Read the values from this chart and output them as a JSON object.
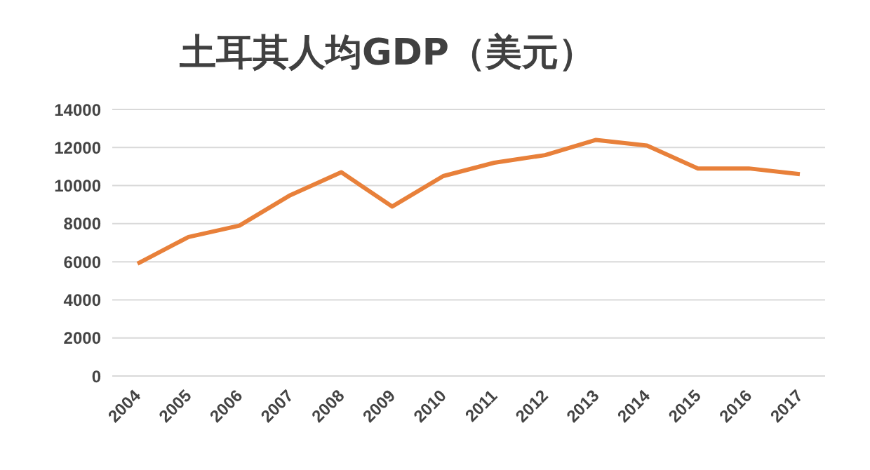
{
  "chart_data": {
    "type": "line",
    "title": "土耳其人均GDP（美元）",
    "categories": [
      "2004",
      "2005",
      "2006",
      "2007",
      "2008",
      "2009",
      "2010",
      "2011",
      "2012",
      "2013",
      "2014",
      "2015",
      "2016",
      "2017"
    ],
    "series": [
      {
        "color": "#e8803a",
        "values": [
          5900,
          7300,
          7900,
          9500,
          10700,
          8900,
          10500,
          11200,
          11600,
          12400,
          12100,
          10900,
          10900,
          10600
        ]
      }
    ],
    "ylim": [
      0,
      14000
    ],
    "yticks": [
      0,
      2000,
      4000,
      6000,
      8000,
      10000,
      12000,
      14000
    ],
    "grid": "y",
    "legend": false,
    "marker": "none",
    "line_style": "solid"
  }
}
